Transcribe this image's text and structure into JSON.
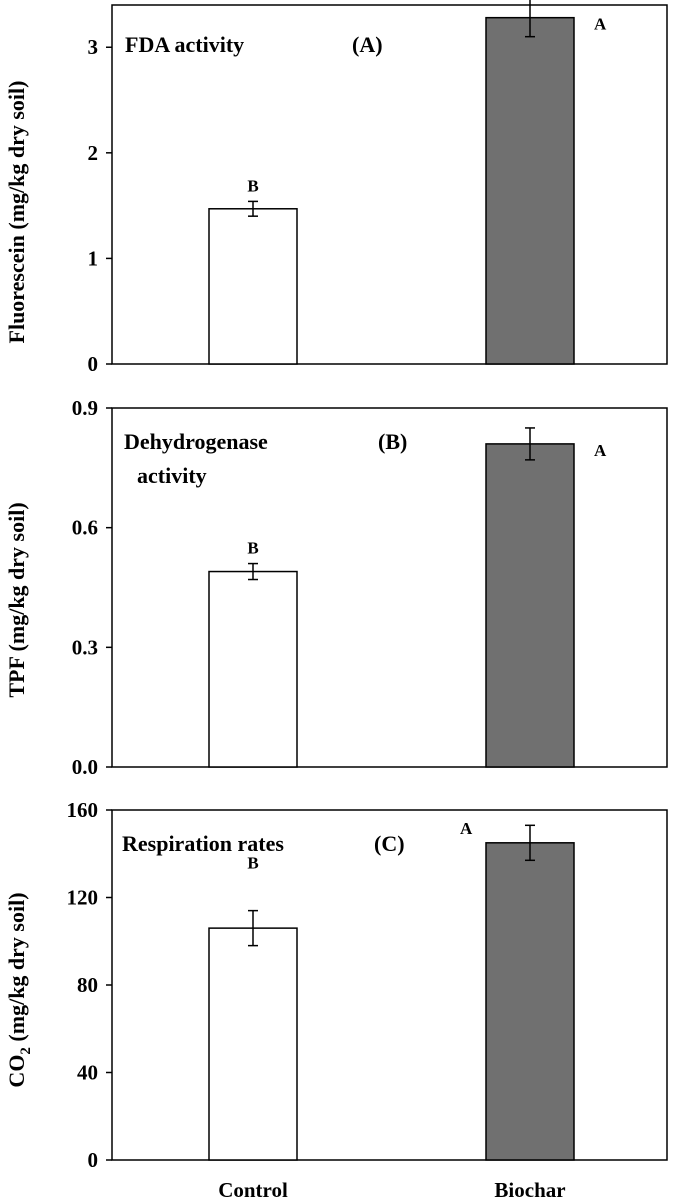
{
  "colors": {
    "control_fill": "#ffffff",
    "biochar_fill": "#707070",
    "axis": "#000000"
  },
  "x_axis_labels": [
    "Control",
    "Biochar"
  ],
  "chart_data": [
    {
      "type": "bar",
      "title": "FDA activity",
      "panel_label": "(A)",
      "ylabel": "Fluorescein (mg/kg  dry soil)",
      "ylim": [
        0,
        3.4
      ],
      "yticks": [
        0,
        1,
        2,
        3
      ],
      "ytick_labels": [
        "0",
        "1",
        "2",
        "3"
      ],
      "categories": [
        "Control",
        "Biochar"
      ],
      "values": [
        1.47,
        3.28
      ],
      "errors": [
        0.07,
        0.18
      ],
      "significance": [
        "B",
        "A"
      ]
    },
    {
      "type": "bar",
      "title": "Dehydrogenase activity",
      "title_lines": [
        "Dehydrogenase",
        "activity"
      ],
      "panel_label": "(B)",
      "ylabel": "TPF (mg/kg  dry soil)",
      "ylim": [
        0,
        0.9
      ],
      "yticks": [
        0,
        0.3,
        0.6,
        0.9
      ],
      "ytick_labels": [
        "0.0",
        "0.3",
        "0.6",
        "0.9"
      ],
      "categories": [
        "Control",
        "Biochar"
      ],
      "values": [
        0.49,
        0.81
      ],
      "errors": [
        0.02,
        0.04
      ],
      "significance": [
        "B",
        "A"
      ]
    },
    {
      "type": "bar",
      "title": "Respiration rates",
      "panel_label": "(C)",
      "ylabel": "CO2 (mg/kg  dry soil)",
      "ylabel_parts": [
        "CO",
        "2",
        " (mg/kg  dry soil)"
      ],
      "ylim": [
        0,
        160
      ],
      "yticks": [
        0,
        40,
        80,
        120,
        160
      ],
      "ytick_labels": [
        "0",
        "40",
        "80",
        "120",
        "160"
      ],
      "categories": [
        "Control",
        "Biochar"
      ],
      "values": [
        106,
        145
      ],
      "errors": [
        8,
        8
      ],
      "significance": [
        "B",
        "A"
      ]
    }
  ]
}
